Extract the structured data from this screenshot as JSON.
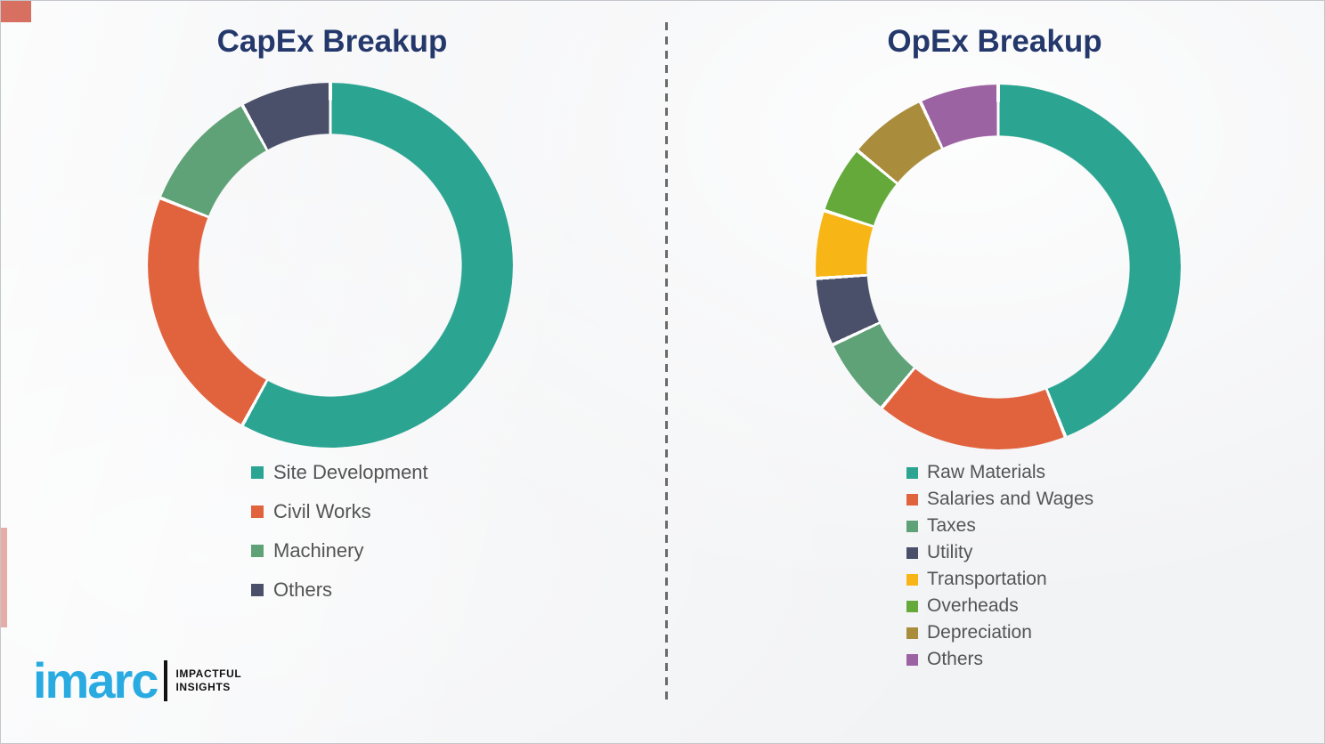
{
  "theme": {
    "background_color": "#f2f3f5",
    "frame_border_color": "#c3c7cb",
    "title_color": "#24386B",
    "legend_text_color": "#545454",
    "divider_color": "#6b6b6b",
    "brand_blue": "#29ABE2",
    "brand_black": "#111111",
    "segment_gap_color": "#ffffff"
  },
  "chart_data": [
    {
      "type": "pie",
      "variant": "donut",
      "title": "CapEx Breakup",
      "categories": [
        "Site Development",
        "Civil Works",
        "Machinery",
        "Others"
      ],
      "values": [
        58,
        23,
        11,
        8
      ],
      "colors": [
        "#2BA491",
        "#E0633E",
        "#5FA277",
        "#4B506A"
      ],
      "start_angle_deg": 0,
      "direction": "clockwise",
      "legend_position": "below-left",
      "data_labels": "none"
    },
    {
      "type": "pie",
      "variant": "donut",
      "title": "OpEx Breakup",
      "categories": [
        "Raw Materials",
        "Salaries and Wages",
        "Taxes",
        "Utility",
        "Transportation",
        "Overheads",
        "Depreciation",
        "Others"
      ],
      "values": [
        44,
        17,
        7,
        6,
        6,
        6,
        7,
        7
      ],
      "colors": [
        "#2BA491",
        "#E0633E",
        "#5FA277",
        "#4B506A",
        "#F8B616",
        "#65A93A",
        "#A98C3C",
        "#9C63A2"
      ],
      "start_angle_deg": 0,
      "direction": "clockwise",
      "legend_position": "below-left",
      "data_labels": "none"
    }
  ],
  "logo": {
    "brand": "imarc",
    "tagline_line1": "IMPACTFUL",
    "tagline_line2": "INSIGHTS"
  }
}
